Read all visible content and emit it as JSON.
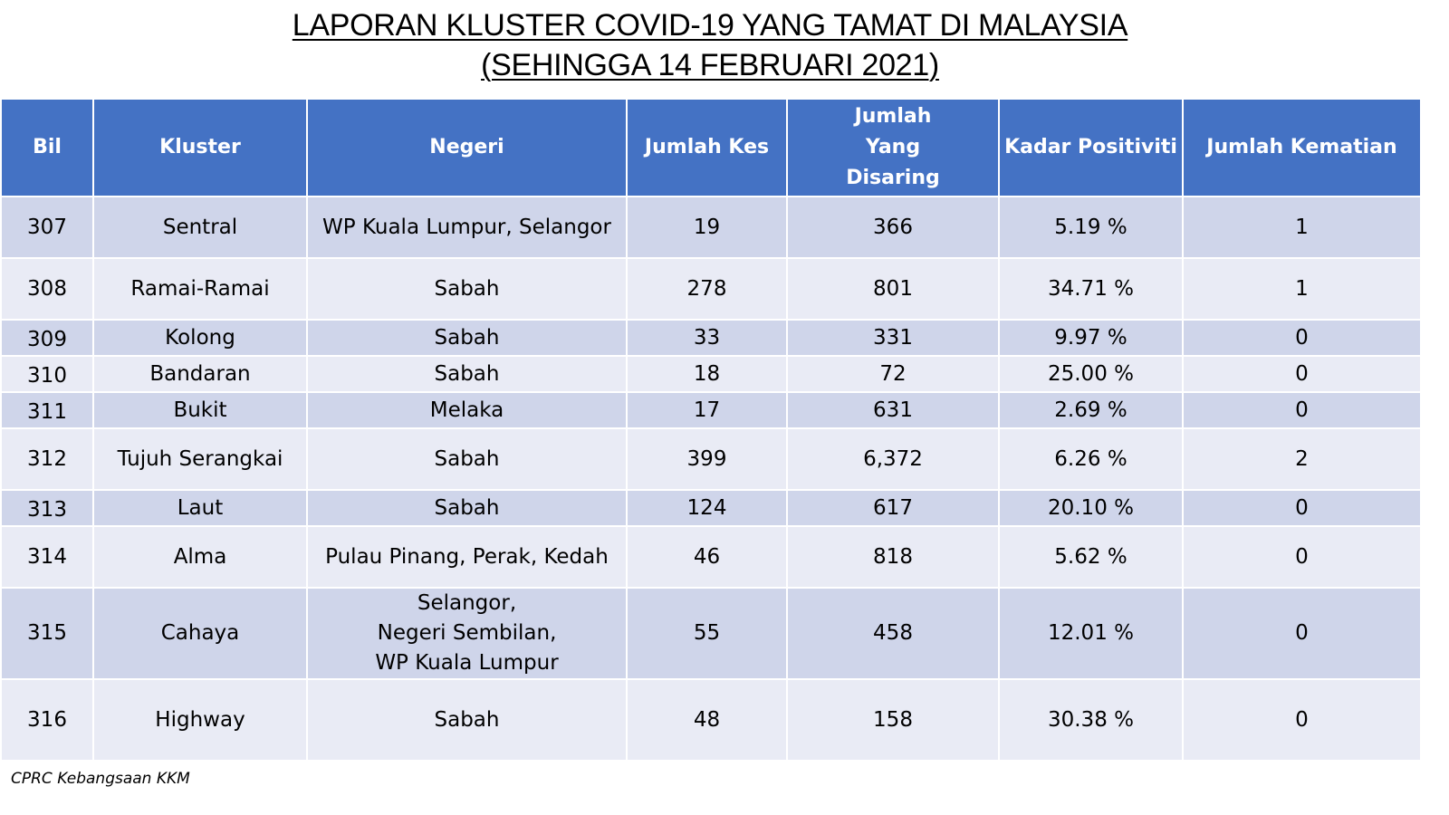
{
  "title": {
    "line1": "LAPORAN KLUSTER COVID-19 YANG TAMAT DI MALAYSIA",
    "line2": "(SEHINGGA 14 FEBRUARI 2021)"
  },
  "table": {
    "headers": [
      "Bil",
      "Kluster",
      "Negeri",
      "Jumlah Kes",
      "Jumlah Yang Disaring",
      "Kadar Positiviti",
      "Jumlah Kematian"
    ],
    "rows": [
      {
        "bil": "307",
        "kluster": "Sentral",
        "negeri": [
          "WP Kuala Lumpur, Selangor"
        ],
        "kes": "19",
        "disaring": "366",
        "positiviti": "5.19 %",
        "kematian": "1"
      },
      {
        "bil": "308",
        "kluster": "Ramai-Ramai",
        "negeri": [
          "Sabah"
        ],
        "kes": "278",
        "disaring": "801",
        "positiviti": "34.71 %",
        "kematian": "1"
      },
      {
        "bil": "309",
        "kluster": "Kolong",
        "negeri": [
          "Sabah"
        ],
        "kes": "33",
        "disaring": "331",
        "positiviti": "9.97 %",
        "kematian": "0"
      },
      {
        "bil": "310",
        "kluster": "Bandaran",
        "negeri": [
          "Sabah"
        ],
        "kes": "18",
        "disaring": "72",
        "positiviti": "25.00 %",
        "kematian": "0"
      },
      {
        "bil": "311",
        "kluster": "Bukit",
        "negeri": [
          "Melaka"
        ],
        "kes": "17",
        "disaring": "631",
        "positiviti": "2.69 %",
        "kematian": "0"
      },
      {
        "bil": "312",
        "kluster": "Tujuh Serangkai",
        "negeri": [
          "Sabah"
        ],
        "kes": "399",
        "disaring": "6,372",
        "positiviti": "6.26 %",
        "kematian": "2"
      },
      {
        "bil": "313",
        "kluster": "Laut",
        "negeri": [
          "Sabah"
        ],
        "kes": "124",
        "disaring": "617",
        "positiviti": "20.10 %",
        "kematian": "0"
      },
      {
        "bil": "314",
        "kluster": "Alma",
        "negeri": [
          "Pulau Pinang, Perak, Kedah"
        ],
        "kes": "46",
        "disaring": "818",
        "positiviti": "5.62  %",
        "kematian": "0"
      },
      {
        "bil": "315",
        "kluster": "Cahaya",
        "negeri": [
          "Selangor,",
          "Negeri Sembilan,",
          "WP Kuala Lumpur"
        ],
        "kes": "55",
        "disaring": "458",
        "positiviti": "12.01 %",
        "kematian": "0"
      },
      {
        "bil": "316",
        "kluster": "Highway",
        "negeri": [
          "Sabah"
        ],
        "kes": "48",
        "disaring": "158",
        "positiviti": "30.38 %",
        "kematian": "0"
      }
    ]
  },
  "source": "CPRC Kebangsaan KKM",
  "colors": {
    "header_bg": "#4472c4",
    "row_odd": "#cfd5ea",
    "row_even": "#e9ebf5"
  }
}
